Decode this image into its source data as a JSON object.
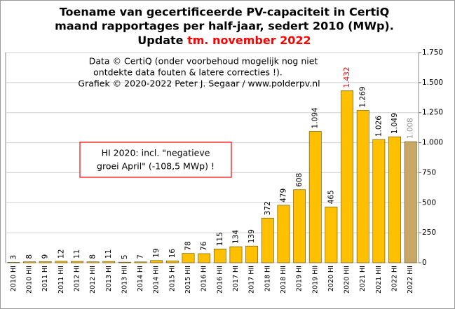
{
  "chart_data": {
    "type": "bar",
    "title": [
      "Toename van gecertificeerde PV-capaciteit in CertiQ",
      "maand rapportages per half-jaar, sedert 2010 (MWp)."
    ],
    "title_update": "Update",
    "title_highlight": "tm. november 2022",
    "title_highlight_color": "#ff0000",
    "annotations": [
      "Data © CertiQ (onder voorbehoud mogelijk  nog niet",
      "ontdekte data fouten & latere correcties !).",
      "Grafiek  © 2020-2022 Peter J. Segaar / www.polderpv.nl"
    ],
    "callout": [
      "HI 2020: incl. \"negatieve",
      "groei April\"  (-108,5 MWp) !"
    ],
    "callout_border_color": "#ff0000",
    "categories": [
      "2010 HI",
      "2010 HII",
      "2011 HI",
      "2011 HII",
      "2012 HI",
      "2012 HII",
      "2013 HI",
      "2013 HII",
      "2014 HI",
      "2014 HII",
      "2015 HI",
      "2015 HII",
      "2016 HI",
      "2016 HII",
      "2017 HI",
      "2017 HII",
      "2018 HI",
      "2018 HII",
      "2019 HI",
      "2019 HII",
      "2020 HI",
      "2020 HII",
      "2021 HI",
      "2021 HII",
      "2022 HI",
      "2022 HII"
    ],
    "values": [
      3,
      8,
      9,
      12,
      11,
      8,
      11,
      5,
      7,
      19,
      16,
      78,
      76,
      115,
      134,
      139,
      372,
      479,
      608,
      1094,
      465,
      1432,
      1269,
      1026,
      1049,
      1008
    ],
    "value_labels": [
      "3",
      "8",
      "9",
      "12",
      "11",
      "8",
      "11",
      "5",
      "7",
      "19",
      "16",
      "78",
      "76",
      "115",
      "134",
      "139",
      "372",
      "479",
      "608",
      "1.094",
      "465",
      "1.432",
      "1.269",
      "1.026",
      "1.049",
      "1.008"
    ],
    "bar_colors": [
      "#ffc000",
      "#ffc000",
      "#ffc000",
      "#ffc000",
      "#ffc000",
      "#ffc000",
      "#ffc000",
      "#ffc000",
      "#ffc000",
      "#ffc000",
      "#ffc000",
      "#ffc000",
      "#ffc000",
      "#ffc000",
      "#ffc000",
      "#ffc000",
      "#ffc000",
      "#ffc000",
      "#ffc000",
      "#ffc000",
      "#ffc000",
      "#ffc000",
      "#ffc000",
      "#ffc000",
      "#ffc000",
      "#c9a865"
    ],
    "label_colors": [
      "#000000",
      "#000000",
      "#000000",
      "#000000",
      "#000000",
      "#000000",
      "#000000",
      "#000000",
      "#000000",
      "#000000",
      "#000000",
      "#000000",
      "#000000",
      "#000000",
      "#000000",
      "#000000",
      "#000000",
      "#000000",
      "#000000",
      "#000000",
      "#000000",
      "#ff0000",
      "#000000",
      "#000000",
      "#000000",
      "#999999"
    ],
    "ylim": [
      0,
      1750
    ],
    "yticks": [
      0,
      250,
      500,
      750,
      {
        "value": 1000,
        "label": "1.000"
      },
      {
        "value": 1250,
        "label": "1.250"
      },
      {
        "value": 1500,
        "label": "1.500"
      },
      {
        "value": 1750,
        "label": "1.750"
      }
    ],
    "grid": true
  }
}
